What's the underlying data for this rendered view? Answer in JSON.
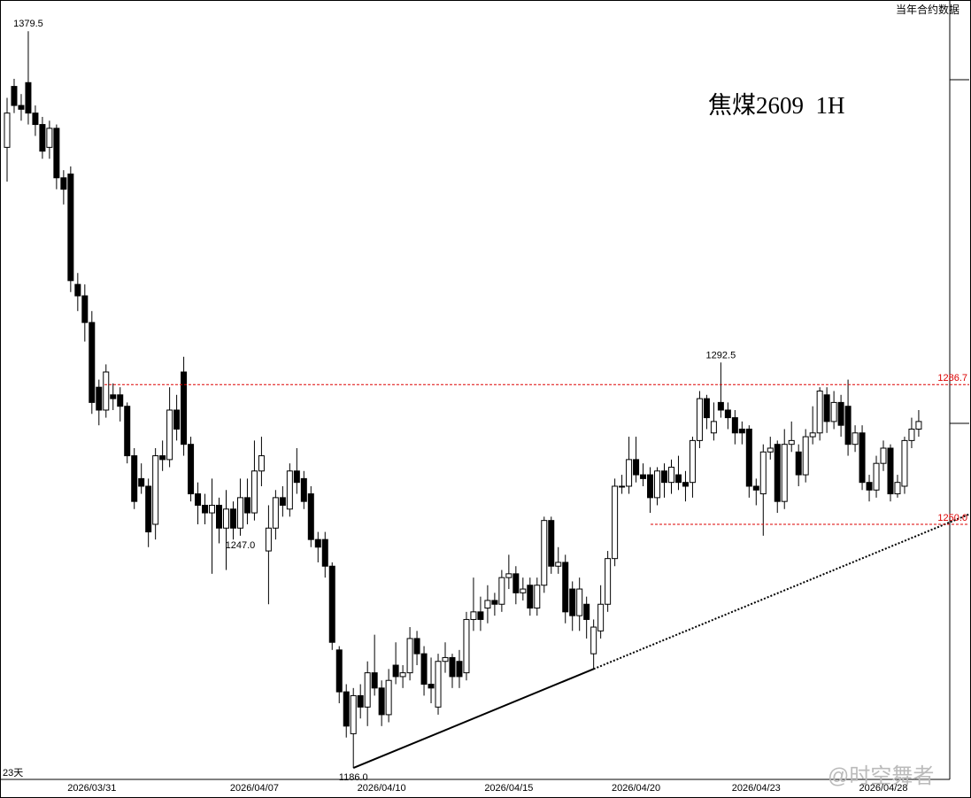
{
  "chart_data": {
    "type": "candlestick",
    "title": "焦煤2609  1H",
    "corner_label": "当年合约数据",
    "period_label": "23天",
    "watermark": "@时空舞者",
    "ylim": [
      1183,
      1387
    ],
    "categories": [
      null,
      null,
      null,
      null,
      null,
      null,
      null,
      null,
      null,
      null,
      null,
      null,
      "2026/03/31",
      null,
      null,
      null,
      null,
      null,
      null,
      null,
      null,
      null,
      null,
      null,
      null,
      null,
      null,
      null,
      null,
      null,
      null,
      null,
      null,
      null,
      null,
      "2026/04/07",
      null,
      null,
      null,
      null,
      null,
      null,
      null,
      null,
      null,
      null,
      null,
      null,
      null,
      null,
      null,
      null,
      null,
      "2026/04/10",
      null,
      null,
      null,
      null,
      null,
      null,
      null,
      null,
      null,
      null,
      null,
      null,
      null,
      null,
      null,
      null,
      null,
      "2026/04/15",
      null,
      null,
      null,
      null,
      null,
      null,
      null,
      null,
      null,
      null,
      null,
      null,
      null,
      null,
      null,
      null,
      null,
      "2026/04/20",
      null,
      null,
      null,
      null,
      null,
      null,
      null,
      null,
      null,
      null,
      null,
      null,
      null,
      null,
      null,
      null,
      "2026/04/23",
      null,
      null,
      null,
      null,
      null,
      null,
      null,
      null,
      null,
      null,
      null,
      null,
      null,
      null,
      null,
      null,
      null,
      "2026/04/28",
      null,
      null,
      null,
      null,
      null
    ],
    "open": [
      1349,
      1365,
      1360,
      1366,
      1358,
      1355,
      1349,
      1354,
      1341,
      1342,
      1313,
      1310,
      1303,
      1286,
      1280,
      1284,
      1284,
      1281,
      1268,
      1262,
      1260,
      1250,
      1268,
      1267,
      1280,
      1290,
      1271,
      1258,
      1255,
      1253,
      1255,
      1249,
      1254,
      1249,
      1257,
      1253,
      1264,
      1243,
      1249,
      1257,
      1254,
      1264,
      1262,
      1258,
      1246,
      1246,
      1239,
      1217,
      1206,
      1195,
      1205,
      1202,
      1211,
      1207,
      1200,
      1213,
      1210,
      1211,
      1220,
      1216,
      1208,
      1202,
      1214,
      1215,
      1214,
      1211,
      1225,
      1227,
      1228,
      1230,
      1229,
      1236,
      1237,
      1232,
      1234,
      1228,
      1234,
      1251,
      1239,
      1240,
      1233,
      1226,
      1229,
      1216,
      1222,
      1229,
      1241,
      1260,
      1260,
      1267,
      1263,
      1263,
      1257,
      1264,
      1261,
      1263,
      1261,
      1261,
      1272,
      1283,
      1274,
      1282,
      1280,
      1278,
      1275,
      1275,
      1260,
      1258,
      1269,
      1271,
      1256,
      1271,
      1269,
      1263,
      1273,
      1274,
      1284,
      1277,
      1282,
      1281,
      1271,
      1274,
      1261,
      1259,
      1266,
      1270,
      1258,
      1260,
      1272,
      1275
    ],
    "high": [
      1362,
      1367,
      1363,
      1379.5,
      1360,
      1357,
      1356,
      1355,
      1343,
      1344,
      1316,
      1313,
      1306,
      1288,
      1292,
      1287,
      1286,
      1282,
      1270,
      1266,
      1262,
      1270,
      1272,
      1286,
      1284,
      1294,
      1273,
      1261,
      1258,
      1262,
      1257,
      1259,
      1256,
      1262,
      1262,
      1272,
      1273,
      1255,
      1259,
      1260,
      1266,
      1270,
      1264,
      1260,
      1248,
      1248,
      1240,
      1218,
      1208,
      1207,
      1208,
      1214,
      1221,
      1209,
      1212,
      1219,
      1213,
      1223,
      1222,
      1218,
      1215,
      1216,
      1219,
      1216,
      1217,
      1227,
      1236,
      1231,
      1234,
      1232,
      1238,
      1242,
      1239,
      1236,
      1236,
      1236,
      1252,
      1252,
      1244,
      1242,
      1235,
      1236,
      1231,
      1225,
      1234,
      1243,
      1262,
      1263,
      1273,
      1273,
      1266,
      1265,
      1265,
      1266,
      1267,
      1268,
      1264,
      1273,
      1285,
      1284,
      1282,
      1292.5,
      1282,
      1280,
      1277,
      1276,
      1262,
      1271,
      1273,
      1272,
      1275,
      1277,
      1271,
      1275,
      1281,
      1286,
      1286,
      1285,
      1284,
      1288,
      1276,
      1276,
      1263,
      1268,
      1272,
      1271,
      1263,
      1273,
      1278,
      1280
    ],
    "low": [
      1340,
      1358,
      1356,
      1355,
      1352,
      1346,
      1346,
      1338,
      1334,
      1311,
      1306,
      1298,
      1279,
      1276,
      1278,
      1280,
      1277,
      1266,
      1254,
      1258,
      1244,
      1246,
      1264,
      1265,
      1272,
      1268,
      1256,
      1250,
      1250,
      1237,
      1245,
      1238,
      1246,
      1247,
      1250,
      1251,
      1260,
      1229,
      1246,
      1252,
      1252,
      1258,
      1254,
      1244,
      1240,
      1236,
      1217,
      1203,
      1194,
      1186,
      1199,
      1197,
      1205,
      1197,
      1198,
      1208,
      1207,
      1209,
      1213,
      1205,
      1203,
      1200,
      1211,
      1207,
      1207,
      1209,
      1222,
      1222,
      1224,
      1226,
      1227,
      1233,
      1229,
      1230,
      1226,
      1226,
      1232,
      1237,
      1237,
      1224,
      1222,
      1222,
      1220,
      1212,
      1220,
      1227,
      1239,
      1258,
      1258,
      1261,
      1260,
      1253,
      1255,
      1257,
      1258,
      1259,
      1256,
      1257,
      1270,
      1275,
      1272,
      1278,
      1275,
      1271,
      1271,
      1257,
      1255,
      1247,
      1267,
      1253,
      1254,
      1269,
      1260,
      1261,
      1271,
      1272,
      1274,
      1275,
      1273,
      1268,
      1269,
      1259,
      1256,
      1257,
      1264,
      1256,
      1257,
      1258,
      1270,
      1273
    ],
    "close": [
      1358,
      1360,
      1359,
      1358,
      1355,
      1348,
      1354,
      1341,
      1338,
      1314,
      1310,
      1303,
      1282,
      1280,
      1290,
      1283,
      1281,
      1268,
      1256,
      1260,
      1248,
      1268,
      1267,
      1280,
      1275,
      1271,
      1258,
      1255,
      1253,
      1255,
      1249,
      1254,
      1249,
      1257,
      1253,
      1264,
      1268,
      1249,
      1257,
      1255,
      1264,
      1261,
      1256,
      1246,
      1244,
      1239,
      1219,
      1206,
      1197,
      1205,
      1202,
      1211,
      1207,
      1200,
      1209,
      1210,
      1211,
      1220,
      1216,
      1208,
      1207,
      1214,
      1215,
      1210,
      1210,
      1225,
      1227,
      1225,
      1230,
      1229,
      1236,
      1237,
      1232,
      1233,
      1228,
      1234,
      1251,
      1239,
      1240,
      1227,
      1226,
      1233,
      1225,
      1223,
      1229,
      1241,
      1260,
      1260,
      1267,
      1263,
      1262,
      1257,
      1264,
      1261,
      1265,
      1261,
      1260,
      1272,
      1283,
      1278,
      1277,
      1280,
      1278,
      1274,
      1274,
      1260,
      1259,
      1269,
      1270,
      1256,
      1271,
      1272,
      1263,
      1273,
      1274,
      1285,
      1277,
      1282,
      1276,
      1271,
      1274,
      1261,
      1259,
      1266,
      1270,
      1258,
      1261,
      1272,
      1275,
      1277
    ],
    "hlines": [
      {
        "value": 1286.7,
        "label": "1286.7"
      },
      {
        "value": 1250,
        "label": "1250.0"
      }
    ],
    "annotations": [
      {
        "value": 1379.5,
        "label": "1379.5"
      },
      {
        "value": 1292.5,
        "label": "1292.5"
      },
      {
        "value": 1247,
        "label": "1247.0"
      },
      {
        "value": 1186,
        "label": "1186.0"
      }
    ]
  }
}
